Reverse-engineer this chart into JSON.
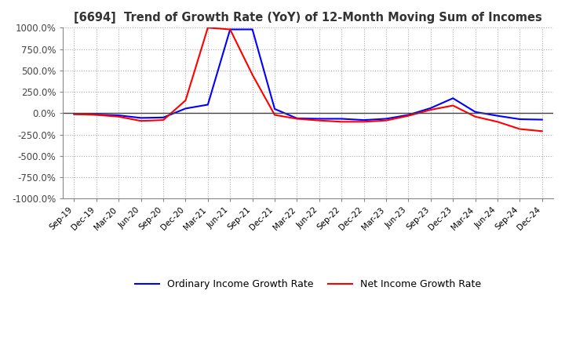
{
  "title": "[6694]  Trend of Growth Rate (YoY) of 12-Month Moving Sum of Incomes",
  "ylim": [
    -1000,
    1000
  ],
  "yticks": [
    -1000,
    -750,
    -500,
    -250,
    0,
    250,
    500,
    750,
    1000
  ],
  "ytick_labels": [
    "-1000.0%",
    "-750.0%",
    "-500.0%",
    "-250.0%",
    "0.0%",
    "250.0%",
    "500.0%",
    "750.0%",
    "1000.0%"
  ],
  "ordinary_color": "#0000FF",
  "net_color": "#FF0000",
  "background_color": "#FFFFFF",
  "grid_color": "#AAAAAA",
  "legend_ordinary": "Ordinary Income Growth Rate",
  "legend_net": "Net Income Growth Rate",
  "x_dates": [
    "Sep-19",
    "Dec-19",
    "Mar-20",
    "Jun-20",
    "Sep-20",
    "Dec-20",
    "Mar-21",
    "Jun-21",
    "Sep-21",
    "Dec-21",
    "Mar-22",
    "Jun-22",
    "Sep-22",
    "Dec-22",
    "Mar-23",
    "Jun-23",
    "Sep-23",
    "Dec-23",
    "Mar-24",
    "Jun-24",
    "Sep-24",
    "Dec-24"
  ],
  "ordinary_values": [
    -10,
    -15,
    -25,
    -55,
    -50,
    55,
    100,
    980,
    980,
    50,
    -60,
    -65,
    -65,
    -80,
    -65,
    -20,
    60,
    175,
    15,
    -30,
    -70,
    -75
  ],
  "net_values": [
    -10,
    -20,
    -40,
    -90,
    -80,
    150,
    1000,
    980,
    450,
    -20,
    -65,
    -85,
    -100,
    -100,
    -85,
    -30,
    40,
    90,
    -40,
    -100,
    -185,
    -210
  ]
}
